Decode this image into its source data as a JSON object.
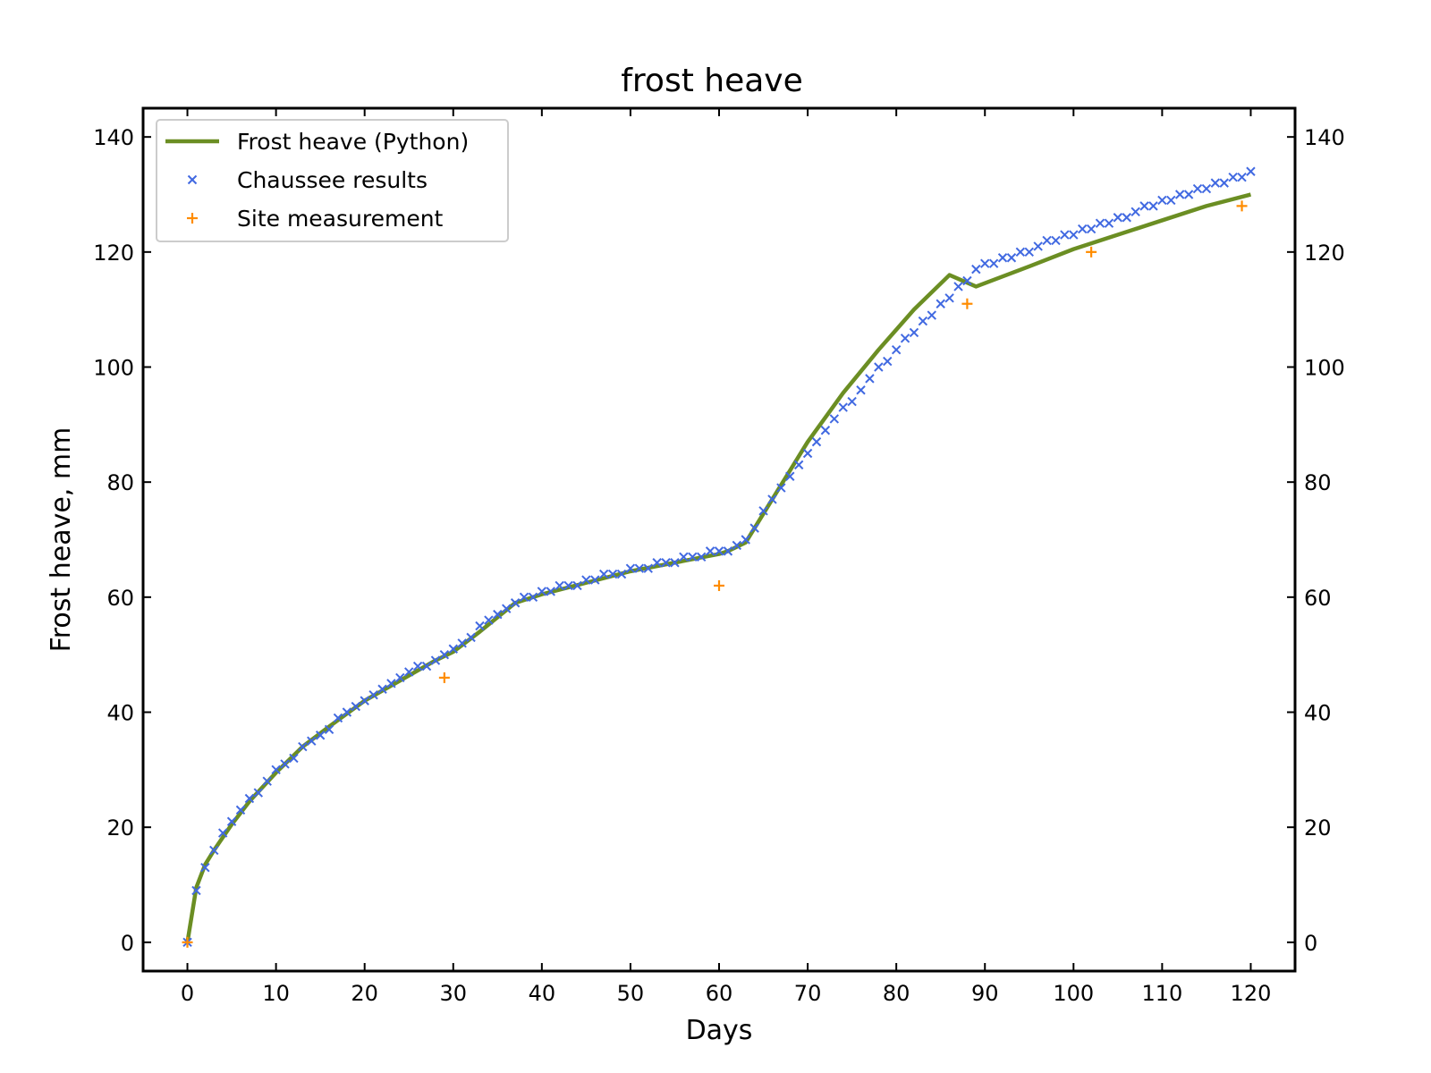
{
  "chart_data": {
    "type": "line",
    "title": "frost heave",
    "xlabel": "Days",
    "ylabel": "Frost heave, mm",
    "xlim": [
      -5,
      125
    ],
    "ylim": [
      -5,
      145
    ],
    "xticks": [
      0,
      10,
      20,
      30,
      40,
      50,
      60,
      70,
      80,
      90,
      100,
      110,
      120
    ],
    "yticks": [
      0,
      20,
      40,
      60,
      80,
      100,
      120,
      140
    ],
    "secondary_y_ticks": true,
    "grid": false,
    "legend": "upper left",
    "series": [
      {
        "name": "Frost heave (Python)",
        "style": "line",
        "color": "#6b8e23",
        "x": [
          0,
          1,
          2,
          3,
          5,
          7,
          10,
          13,
          16,
          20,
          24,
          28,
          30,
          33,
          37,
          40,
          45,
          50,
          55,
          60,
          61,
          63,
          66,
          70,
          74,
          78,
          82,
          86,
          89,
          95,
          100,
          105,
          110,
          115,
          120
        ],
        "y": [
          0,
          9.5,
          13.5,
          16,
          20.5,
          24.5,
          29.5,
          34,
          37.5,
          42,
          45.5,
          49,
          50.5,
          54,
          59,
          60.5,
          62.5,
          64.5,
          66,
          67.5,
          68,
          69.5,
          77,
          87,
          95.5,
          103,
          110,
          116,
          114,
          117.5,
          120.5,
          123,
          125.5,
          128,
          130
        ]
      },
      {
        "name": "Chaussee results",
        "style": "x-markers",
        "color": "#4169e1",
        "x": [
          0,
          1,
          2,
          3,
          4,
          5,
          6,
          7,
          8,
          9,
          10,
          11,
          12,
          13,
          14,
          15,
          16,
          17,
          18,
          19,
          20,
          21,
          22,
          23,
          24,
          25,
          26,
          27,
          28,
          29,
          30,
          31,
          32,
          33,
          34,
          35,
          36,
          37,
          38,
          39,
          40,
          41,
          42,
          43,
          44,
          45,
          46,
          47,
          48,
          49,
          50,
          51,
          52,
          53,
          54,
          55,
          56,
          57,
          58,
          59,
          60,
          61,
          62,
          63,
          64,
          65,
          66,
          67,
          68,
          69,
          70,
          71,
          72,
          73,
          74,
          75,
          76,
          77,
          78,
          79,
          80,
          81,
          82,
          83,
          84,
          85,
          86,
          87,
          88,
          89,
          90,
          91,
          92,
          93,
          94,
          95,
          96,
          97,
          98,
          99,
          100,
          101,
          102,
          103,
          104,
          105,
          106,
          107,
          108,
          109,
          110,
          111,
          112,
          113,
          114,
          115,
          116,
          117,
          118,
          119,
          120
        ],
        "y": [
          0,
          9,
          13,
          16,
          19,
          21,
          23,
          25,
          26,
          28,
          30,
          31,
          32,
          34,
          35,
          36,
          37,
          39,
          40,
          41,
          42,
          43,
          44,
          45,
          46,
          47,
          48,
          48,
          49,
          50,
          51,
          52,
          53,
          55,
          56,
          57,
          58,
          59,
          60,
          60,
          61,
          61,
          62,
          62,
          62,
          63,
          63,
          64,
          64,
          64,
          65,
          65,
          65,
          66,
          66,
          66,
          67,
          67,
          67,
          68,
          68,
          68,
          69,
          70,
          72,
          75,
          77,
          79,
          81,
          83,
          85,
          87,
          89,
          91,
          93,
          94,
          96,
          98,
          100,
          101,
          103,
          105,
          106,
          108,
          109,
          111,
          112,
          114,
          115,
          117,
          118,
          118,
          119,
          119,
          120,
          120,
          121,
          122,
          122,
          123,
          123,
          124,
          124,
          125,
          125,
          126,
          126,
          127,
          128,
          128,
          129,
          129,
          130,
          130,
          131,
          131,
          132,
          132,
          133,
          133,
          134
        ]
      },
      {
        "name": "Site measurement",
        "style": "plus-markers",
        "color": "#ff8c00",
        "x": [
          0,
          29,
          60,
          88,
          102,
          119
        ],
        "y": [
          0,
          46,
          62,
          111,
          120,
          128
        ]
      }
    ]
  }
}
